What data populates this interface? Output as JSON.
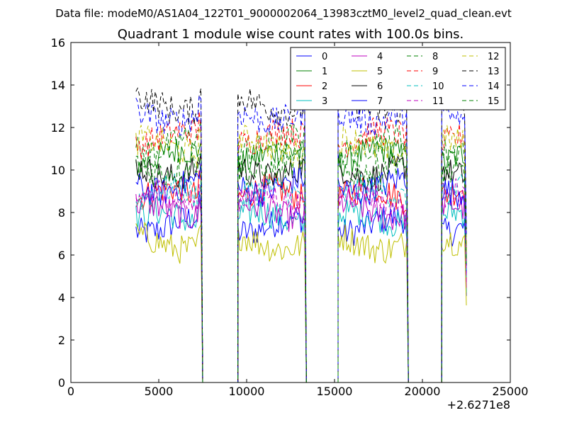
{
  "chart_data": {
    "type": "line",
    "suptitle": "Data file: modeM0/AS1A04_122T01_9000002064_13983cztM0_level2_quad_clean.evt",
    "title": "Quadrant 1 module wise count rates with 100.0s bins.",
    "xlabel": "",
    "ylabel": "",
    "x_offset_text": "+2.6271e8",
    "xlim": [
      0,
      25000
    ],
    "ylim": [
      0,
      16
    ],
    "xticks": [
      0,
      5000,
      10000,
      15000,
      20000,
      25000
    ],
    "xtick_labels": [
      "0",
      "5000",
      "10000",
      "15000",
      "20000",
      "25000"
    ],
    "yticks": [
      0,
      2,
      4,
      6,
      8,
      10,
      12,
      14,
      16
    ],
    "ytick_labels": [
      "0",
      "2",
      "4",
      "6",
      "8",
      "10",
      "12",
      "14",
      "16"
    ],
    "grid": false,
    "legend": {
      "location": "top-right",
      "columns": 4
    },
    "bin_size": 100,
    "segments": [
      {
        "start": 3700,
        "end": 7400,
        "zero_until": 9500
      },
      {
        "start": 9500,
        "end": 13300,
        "zero_until": 15200
      },
      {
        "start": 15200,
        "end": 19100,
        "zero_until": 21100
      },
      {
        "start": 21100,
        "end": 22500,
        "zero_until": null
      }
    ],
    "series": [
      {
        "name": "0",
        "color": "#0000ff",
        "style": "solid",
        "mean": 7.4
      },
      {
        "name": "1",
        "color": "#008000",
        "style": "solid",
        "mean": 10.6
      },
      {
        "name": "2",
        "color": "#ff0000",
        "style": "solid",
        "mean": 8.8
      },
      {
        "name": "3",
        "color": "#00bfbf",
        "style": "solid",
        "mean": 7.7
      },
      {
        "name": "4",
        "color": "#bf00bf",
        "style": "solid",
        "mean": 8.1
      },
      {
        "name": "5",
        "color": "#bfbf00",
        "style": "solid",
        "mean": 6.6
      },
      {
        "name": "6",
        "color": "#000000",
        "style": "solid",
        "mean": 10.0
      },
      {
        "name": "7",
        "color": "#0000ff",
        "style": "solid",
        "mean": 9.3
      },
      {
        "name": "8",
        "color": "#008000",
        "style": "dashed",
        "mean": 11.2
      },
      {
        "name": "9",
        "color": "#ff0000",
        "style": "dashed",
        "mean": 11.5
      },
      {
        "name": "10",
        "color": "#00bfbf",
        "style": "dashed",
        "mean": 8.8
      },
      {
        "name": "11",
        "color": "#bf00bf",
        "style": "dashed",
        "mean": 8.6
      },
      {
        "name": "12",
        "color": "#bfbf00",
        "style": "dashed",
        "mean": 11.1
      },
      {
        "name": "13",
        "color": "#000000",
        "style": "dashed",
        "mean": 13.1
      },
      {
        "name": "14",
        "color": "#0000ff",
        "style": "dashed",
        "mean": 12.6
      },
      {
        "name": "15",
        "color": "#008000",
        "style": "dashed",
        "mean": 10.2
      }
    ]
  }
}
